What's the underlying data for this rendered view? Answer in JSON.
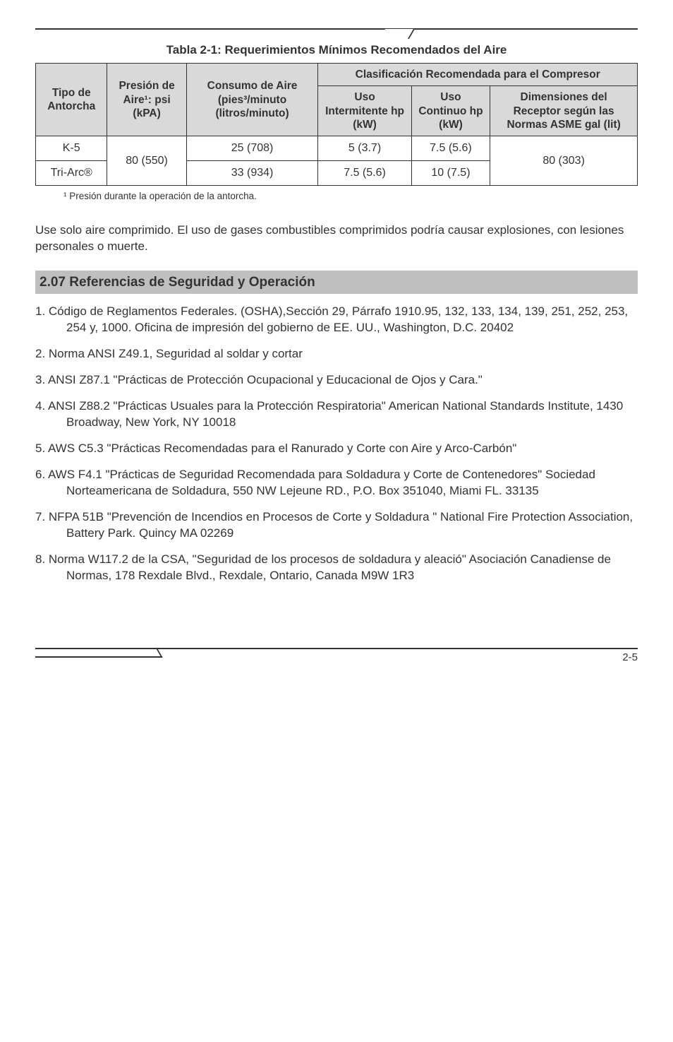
{
  "topRule": true,
  "table": {
    "caption": "Tabla 2-1:  Requerimientos Mínimos Recomendados del Aire",
    "headers": {
      "tipo": "Tipo de Antorcha",
      "presion": "Presión de Aire¹: psi (kPA)",
      "consumo": "Consumo de Aire (pies³/minuto (litros/minuto)",
      "clasif": "Clasificación Recomendada para el Compresor",
      "usoInt": "Uso Intermitente hp (kW)",
      "usoCont": "Uso Continuo hp (kW)",
      "dim": "Dimensiones del Receptor según las Normas ASME gal (lit)"
    },
    "rows": [
      {
        "tipo": "K-5",
        "consumo": "25 (708)",
        "usoInt": "5 (3.7)",
        "usoCont": "7.5 (5.6)"
      },
      {
        "tipo": "Tri-Arc®",
        "consumo": "33 (934)",
        "usoInt": "7.5 (5.6)",
        "usoCont": "10 (7.5)"
      }
    ],
    "presionShared": "80 (550)",
    "dimShared": "80 (303)"
  },
  "footnote": "¹ Presión durante la operación de la antorcha.",
  "warningPara": "Use solo aire comprimido. El uso de gases combustibles comprimidos podría causar explosiones, con lesiones personales o muerte.",
  "sectionHeader": "2.07  Referencias de Seguridad y Operación",
  "refs": [
    "1. Código de Reglamentos Federales. (OSHA),Sección 29, Párrafo 1910.95, 132, 133, 134, 139, 251, 252, 253, 254 y, 1000. Oficina de impresión del gobierno de EE. UU., Washington, D.C. 20402",
    "2. Norma ANSI Z49.1, Seguridad al soldar y cortar",
    "3. ANSI Z87.1 \"Prácticas de Protección Ocupacional y Educacional de Ojos y Cara.\"",
    "4. ANSI Z88.2 \"Prácticas Usuales para la Protección Respiratoria\" American National Standards Institute, 1430 Broadway, New York, NY 10018",
    "5. AWS C5.3 \"Prácticas Recomendadas para el Ranurado y Corte con Aire y Arco-Carbón\"",
    "6. AWS F4.1 \"Prácticas de Seguridad Recomendada para Soldadura y Corte de Contenedores\" Sociedad Norteamericana de Soldadura, 550 NW Lejeune RD., P.O. Box 351040, Miami FL. 33135",
    "7. NFPA 51B \"Prevención de Incendios en Procesos de Corte y Soldadura \" National Fire Protection Association, Battery Park. Quincy MA 02269",
    "8. Norma W117.2 de la CSA, \"Seguridad de los procesos de soldadura y aleació\" Asociación Canadiense de Normas, 178 Rexdale Blvd., Rexdale, Ontario, Canada M9W 1R3"
  ],
  "pageNumber": "2-5"
}
